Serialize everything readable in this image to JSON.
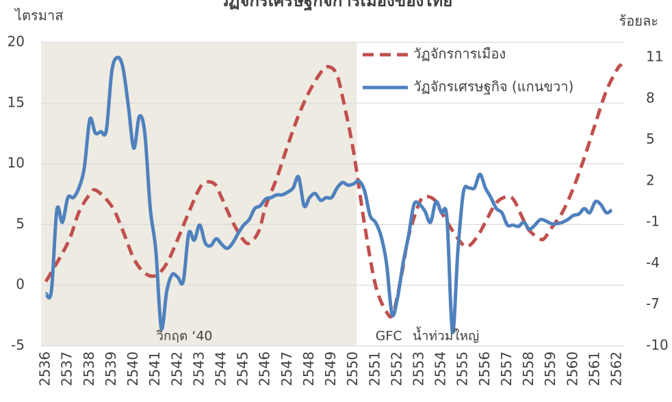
{
  "chart_data": {
    "type": "line",
    "title": "วัฏจักรเศรษฐกิจการเมืองของไทย",
    "y_label": "ไตรมาส",
    "y2_label": "ร้อยละ",
    "xlim": [
      2535.78,
      2562.31
    ],
    "xticks": [
      2536,
      2537,
      2538,
      2539,
      2540,
      2541,
      2542,
      2543,
      2544,
      2545,
      2546,
      2547,
      2548,
      2549,
      2550,
      2551,
      2552,
      2553,
      2554,
      2555,
      2556,
      2557,
      2558,
      2559,
      2560,
      2561,
      2562
    ],
    "ylim": [
      -5,
      20
    ],
    "yticks": [
      -5,
      0,
      5,
      10,
      15,
      20
    ],
    "y2lim": [
      -10,
      12.1
    ],
    "y2ticks": [
      -10,
      -7,
      -4,
      -1,
      2,
      5,
      8,
      11
    ],
    "grid": true,
    "shaded_x": [
      2535.78,
      2550.15
    ],
    "shade_color": "#eeebe3",
    "legend": "upper right",
    "annotations": [
      {
        "text": "วิกฤต ‘40",
        "x": 2542.3,
        "y": -4.2
      },
      {
        "text": "GFC",
        "x": 2551.6,
        "y": -4.2
      },
      {
        "text": "น้ำท่วมใหญ่",
        "x": 2554.2,
        "y": -4.2
      }
    ],
    "series": [
      {
        "name": "วัฏจักรการเมือง",
        "color": "#c0504d",
        "dashed": true,
        "x": [
          2536,
          2537,
          2537.5,
          2538,
          2538.3,
          2539,
          2539.5,
          2540,
          2540.5,
          2541,
          2541.5,
          2542,
          2542.5,
          2543,
          2543.3,
          2543.7,
          2544,
          2544.5,
          2545,
          2545.3,
          2545.7,
          2546,
          2546.5,
          2547,
          2547.5,
          2548,
          2548.5,
          2548.8,
          2549.2,
          2549.5,
          2550,
          2550.5,
          2551,
          2551.5,
          2551.8,
          2552.2,
          2552.5,
          2553,
          2553.3,
          2553.7,
          2554,
          2554.5,
          2555,
          2555.3,
          2555.7,
          2556,
          2556.5,
          2557,
          2557.3,
          2557.7,
          2558,
          2558.5,
          2558.7,
          2559,
          2559.5,
          2560,
          2560.5,
          2561,
          2561.5,
          2562,
          2562.2
        ],
        "values": [
          0.3,
          3.5,
          6,
          7.5,
          7.8,
          6.5,
          4.5,
          2.2,
          1,
          0.8,
          1.8,
          3.8,
          6,
          8,
          8.5,
          8.3,
          7.2,
          5.2,
          3.7,
          3.5,
          4.5,
          6.5,
          8.8,
          11.5,
          14,
          16,
          17.5,
          18,
          17.5,
          15.5,
          11,
          5,
          0,
          -2.2,
          -2.3,
          1,
          4,
          6.8,
          7.3,
          7,
          6,
          4.5,
          3.3,
          3.3,
          4.2,
          5.2,
          6.8,
          7.3,
          7,
          5.5,
          4.5,
          3.8,
          3.9,
          4.7,
          6,
          8,
          10.5,
          13.3,
          16,
          17.8,
          18.2
        ]
      },
      {
        "name": "วัฏจักรเศรษฐกิจ (แกนขวา)",
        "color": "#4f81bd",
        "axis": "y2",
        "x": [
          2536,
          2536.25,
          2536.5,
          2536.75,
          2537,
          2537.25,
          2537.5,
          2537.75,
          2538,
          2538.25,
          2538.5,
          2538.75,
          2539,
          2539.25,
          2539.5,
          2539.75,
          2540,
          2540.25,
          2540.5,
          2540.75,
          2541,
          2541.25,
          2541.5,
          2541.75,
          2542,
          2542.25,
          2542.5,
          2542.75,
          2543,
          2543.25,
          2543.5,
          2543.75,
          2544,
          2544.25,
          2544.5,
          2544.75,
          2545,
          2545.25,
          2545.5,
          2545.75,
          2546,
          2546.25,
          2546.5,
          2546.75,
          2547,
          2547.25,
          2547.5,
          2547.75,
          2548,
          2548.25,
          2548.5,
          2548.75,
          2549,
          2549.25,
          2549.5,
          2549.75,
          2550,
          2550.25,
          2550.5,
          2550.75,
          2551,
          2551.25,
          2551.5,
          2551.75,
          2552,
          2552.25,
          2552.5,
          2552.75,
          2553,
          2553.25,
          2553.5,
          2553.75,
          2554,
          2554.25,
          2554.5,
          2554.75,
          2555,
          2555.25,
          2555.5,
          2555.75,
          2556,
          2556.25,
          2556.5,
          2556.75,
          2557,
          2557.25,
          2557.5,
          2557.75,
          2558,
          2558.25,
          2558.5,
          2558.75,
          2559,
          2559.25,
          2559.5,
          2559.75,
          2560,
          2560.25,
          2560.5,
          2560.75,
          2561,
          2561.25,
          2561.5,
          2561.75
        ],
        "values": [
          -6.2,
          -6.0,
          -0.1,
          -1.0,
          0.8,
          0.8,
          1.5,
          3,
          6.5,
          5.5,
          5.6,
          5.7,
          10,
          11,
          10.3,
          7.5,
          4.4,
          6.7,
          5.5,
          0,
          -3,
          -8.7,
          -6,
          -4.8,
          -5,
          -5.3,
          -1.8,
          -2.3,
          -1.2,
          -2.5,
          -2.7,
          -2.2,
          -2.6,
          -2.9,
          -2.5,
          -1.8,
          -1.2,
          -0.8,
          0,
          0.2,
          0.7,
          0.8,
          1,
          1,
          1.2,
          1.5,
          2.3,
          0.2,
          0.8,
          1.1,
          0.6,
          0.8,
          0.8,
          1.5,
          1.9,
          1.7,
          1.8,
          2,
          1.3,
          -0.5,
          -1,
          -2,
          -4,
          -7.7,
          -6.5,
          -4,
          -2,
          0.3,
          0.3,
          -0.2,
          -1,
          0.5,
          -0.3,
          -0.7,
          -9,
          -3,
          1.2,
          1.5,
          1.5,
          2.5,
          1.5,
          0.8,
          0,
          -0.3,
          -1.2,
          -1.2,
          -1.3,
          -1,
          -1.5,
          -1.2,
          -0.8,
          -0.9,
          -1.1,
          -1.1,
          -1,
          -0.8,
          -0.5,
          -0.4,
          0,
          -0.3,
          0.5,
          0.3,
          -0.3,
          -0.1
        ]
      }
    ]
  }
}
